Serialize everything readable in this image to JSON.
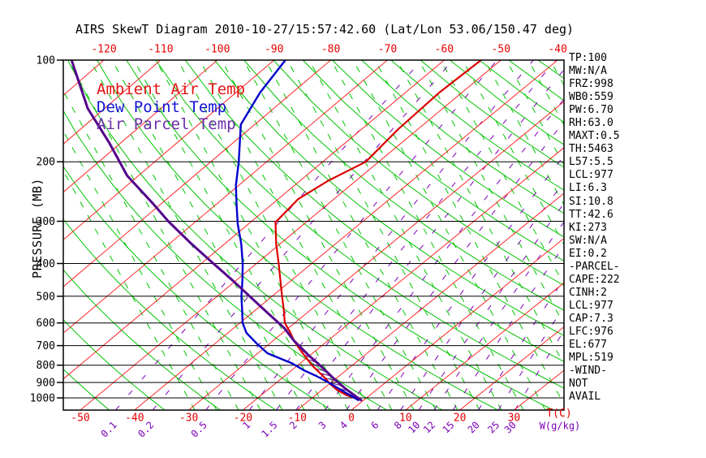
{
  "title": "AIRS SkewT Diagram 2010-10-27/15:57:42.60 (Lat/Lon 53.06/150.47 deg)",
  "legend": {
    "items": [
      {
        "label": "Ambient Air Temp",
        "color": "#e41414"
      },
      {
        "label": "Dew Point Temp",
        "color": "#1414d2"
      },
      {
        "label": "Air Parcel Temp",
        "color": "#6b2fa8"
      }
    ]
  },
  "stats_panel": {
    "items": [
      "TP:100",
      "MW:N/A",
      "FRZ:998",
      "WB0:559",
      "PW:6.70",
      "RH:63.0",
      "MAXT:0.5",
      "TH:5463",
      "L57:5.5",
      "LCL:977",
      "LI:6.3",
      "SI:10.8",
      "TT:42.6",
      "KI:273",
      "SW:N/A",
      "EI:0.2",
      "-PARCEL-",
      "CAPE:222",
      "CINH:2",
      "LCL:977",
      "CAP:7.3",
      "LFC:976",
      "EL:677",
      "MPL:519",
      "-WIND-",
      "NOT",
      "AVAIL"
    ]
  },
  "axes": {
    "pressure_axis_label": "PRESSURE (MB)",
    "pressure_ticks": [
      100,
      200,
      300,
      400,
      500,
      600,
      700,
      800,
      900,
      1000
    ],
    "top_temp_ticks": [
      -120,
      -110,
      -100,
      -90,
      -80,
      -70,
      -60,
      -50,
      -40
    ],
    "bottom_temp_ticks": [
      -50,
      -40,
      -30,
      -20,
      -10,
      0,
      10,
      20,
      30
    ],
    "temp_unit_label": "T(C)",
    "mixing_unit_label": "W(g/kg)",
    "mixing_ratio_ticks": [
      0.1,
      0.2,
      0.5,
      1,
      1.5,
      2,
      3,
      4,
      6,
      8,
      10,
      12,
      15,
      20,
      25,
      30
    ]
  },
  "chart_data": {
    "type": "line",
    "title": "AIRS SkewT Diagram 2010-10-27/15:57:42.60 (Lat/Lon 53.06/150.47 deg)",
    "x_axis": {
      "label": "Temperature (C)",
      "range": [
        -160,
        40
      ],
      "skewed": true
    },
    "y_axis": {
      "label": "Pressure (MB)",
      "range": [
        100,
        1050
      ],
      "scale": "log",
      "inverted": true
    },
    "grid": {
      "isotherm_step_c": 10,
      "dry_adiabat_step_c": 10,
      "legend_position": "top-left"
    },
    "series": [
      {
        "name": "Ambient Air Temp",
        "color": "#dc0000",
        "width": 2.2,
        "points": [
          [
            100,
            -53.5
          ],
          [
            125,
            -54.0
          ],
          [
            160,
            -53.5
          ],
          [
            200,
            -52.3
          ],
          [
            228,
            -55.0
          ],
          [
            258,
            -56.4
          ],
          [
            302,
            -55.5
          ],
          [
            350,
            -50.7
          ],
          [
            400,
            -46.0
          ],
          [
            450,
            -41.9
          ],
          [
            500,
            -38.2
          ],
          [
            550,
            -34.8
          ],
          [
            600,
            -31.8
          ],
          [
            640,
            -28.7
          ],
          [
            677,
            -26.2
          ],
          [
            718,
            -23.2
          ],
          [
            760,
            -20.2
          ],
          [
            802,
            -17.3
          ],
          [
            871,
            -12.3
          ],
          [
            910,
            -9.8
          ],
          [
            946,
            -7.3
          ],
          [
            980,
            -4.4
          ],
          [
            1015,
            -0.5
          ]
        ]
      },
      {
        "name": "Dew Point Temp",
        "color": "#0000cd",
        "width": 2.4,
        "points": [
          [
            100,
            -88.0
          ],
          [
            125,
            -85.7
          ],
          [
            155,
            -82.5
          ],
          [
            200,
            -75.0
          ],
          [
            235,
            -70.5
          ],
          [
            266,
            -66.5
          ],
          [
            305,
            -62.0
          ],
          [
            350,
            -57.0
          ],
          [
            400,
            -52.5
          ],
          [
            450,
            -48.8
          ],
          [
            500,
            -45.6
          ],
          [
            550,
            -42.4
          ],
          [
            600,
            -39.5
          ],
          [
            642,
            -36.6
          ],
          [
            690,
            -32.4
          ],
          [
            738,
            -28.2
          ],
          [
            790,
            -21.5
          ],
          [
            830,
            -17.6
          ],
          [
            861,
            -14.2
          ],
          [
            900,
            -10.5
          ],
          [
            946,
            -6.6
          ],
          [
            1015,
            -1.0
          ]
        ]
      },
      {
        "name": "Air Parcel Temp",
        "color": "#53008c",
        "width": 3,
        "points": [
          [
            100,
            -125.7
          ],
          [
            139,
            -113.0
          ],
          [
            176,
            -102.0
          ],
          [
            220,
            -92.0
          ],
          [
            266,
            -81.5
          ],
          [
            300,
            -75.0
          ],
          [
            350,
            -66.0
          ],
          [
            400,
            -57.8
          ],
          [
            450,
            -50.5
          ],
          [
            500,
            -44.1
          ],
          [
            560,
            -37.2
          ],
          [
            620,
            -30.9
          ],
          [
            677,
            -26.2
          ],
          [
            746,
            -20.4
          ],
          [
            810,
            -15.2
          ],
          [
            871,
            -10.8
          ],
          [
            940,
            -5.9
          ],
          [
            1015,
            -0.5
          ]
        ]
      }
    ],
    "cape_hatch_region": {
      "between": [
        "Ambient Air Temp",
        "Air Parcel Temp"
      ],
      "pressure_range": [
        677,
        1015
      ],
      "color": "#52007e"
    }
  },
  "colors": {
    "isotherm_grid": "#ff2626",
    "adiabat_grid": "#00c400",
    "mixing_grid": "#7d00b8",
    "pressure_grid": "#000000",
    "frame": "#000000",
    "top_tick_labels": "#e80000",
    "bottom_tick_labels": "#e80000",
    "mixing_labels": "#7d00b8",
    "pressure_labels": "#000000"
  }
}
